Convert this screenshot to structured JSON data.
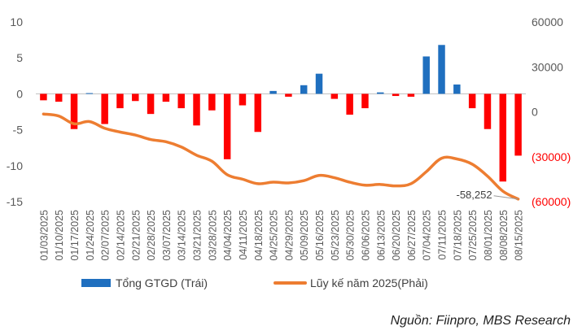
{
  "chart_data": {
    "type": "bar+line",
    "categories": [
      "01/03/2025",
      "01/10/2025",
      "01/17/2025",
      "01/24/2025",
      "02/07/2025",
      "02/14/2025",
      "02/21/2025",
      "02/28/2025",
      "03/07/2025",
      "03/14/2025",
      "03/21/2025",
      "03/28/2025",
      "04/04/2025",
      "04/11/2025",
      "04/18/2025",
      "04/25/2025",
      "04/29/2025",
      "05/09/2025",
      "05/16/2025",
      "05/23/2025",
      "05/30/2025",
      "06/06/2025",
      "06/13/2025",
      "06/20/2025",
      "06/27/2025",
      "07/04/2025",
      "07/11/2025",
      "07/18/2025",
      "07/25/2025",
      "08/01/2025",
      "08/08/2025",
      "08/15/2025"
    ],
    "series": [
      {
        "name": "Tổng GTGD (Trái)",
        "type": "bar",
        "axis": "left",
        "values": [
          -0.9,
          -1.1,
          -4.9,
          0.1,
          -4.2,
          -2.0,
          -1.0,
          -2.8,
          -1.1,
          -2.0,
          -4.4,
          -2.3,
          -9.1,
          -1.6,
          -5.3,
          0.4,
          -0.4,
          1.2,
          2.8,
          -0.7,
          -2.9,
          -2.0,
          0.2,
          -0.3,
          -0.4,
          5.2,
          6.8,
          1.3,
          -2.0,
          -4.9,
          -12.2,
          -8.6
        ]
      },
      {
        "name": "Lũy kế năm 2025(Phải)",
        "type": "line",
        "axis": "right",
        "values": [
          -1500,
          -2800,
          -8000,
          -6500,
          -11000,
          -13500,
          -15500,
          -18500,
          -20000,
          -23500,
          -29000,
          -33000,
          -42000,
          -45000,
          -48000,
          -47000,
          -47500,
          -46000,
          -42500,
          -44000,
          -47000,
          -49000,
          -48500,
          -49500,
          -48000,
          -40000,
          -31000,
          -31500,
          -35000,
          -43000,
          -53000,
          -58252
        ]
      }
    ],
    "yleft": {
      "ylim": [
        -15,
        10
      ],
      "ticks": [
        "10",
        "5",
        "0",
        "-5",
        "-10",
        "-15"
      ]
    },
    "yright": {
      "ylim": [
        -60000,
        60000
      ],
      "ticks": [
        "60000",
        "30000",
        "0",
        "(30000)",
        "(60000)"
      ]
    },
    "annotation": {
      "label": "-58,252",
      "value": -58252
    },
    "legend_position": "bottom",
    "grid": false,
    "colors": {
      "negative_bar": "#ff0000",
      "positive_bar": "#1f6fbf",
      "line": "#ed7d31",
      "axis_text": "#595959",
      "negative_tick": "#ff0000"
    }
  },
  "legend": {
    "bar_label": "Tổng GTGD (Trái)",
    "line_label": "Lũy kế năm 2025(Phải)"
  },
  "source_note": "Nguồn: Fiinpro, MBS Research"
}
